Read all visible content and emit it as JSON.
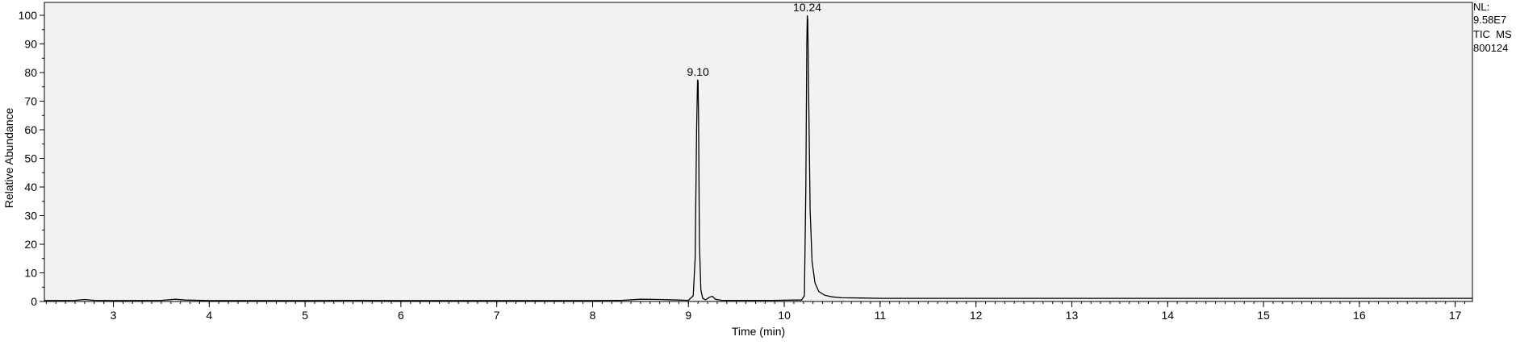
{
  "chart_data": {
    "type": "line",
    "xlabel": "Time (min)",
    "ylabel": "Relative Abundance",
    "xlim": [
      2.28,
      17.18
    ],
    "ylim": [
      0,
      100
    ],
    "x_ticks": [
      "3",
      "4",
      "5",
      "6",
      "7",
      "8",
      "9",
      "10",
      "11",
      "12",
      "13",
      "14",
      "15",
      "16",
      "17"
    ],
    "y_ticks": [
      "0",
      "10",
      "20",
      "30",
      "40",
      "50",
      "60",
      "70",
      "80",
      "90",
      "100"
    ],
    "grid": false,
    "legend": "none",
    "plot_background": "#f2f2f2",
    "line_color": "#000000",
    "peak_labels": [
      {
        "x": 9.1,
        "y": 77.5,
        "label": "9.10"
      },
      {
        "x": 10.24,
        "y": 100,
        "label": "10.24"
      }
    ],
    "info": {
      "nl_label": "NL:",
      "nl_value": "9.58E7",
      "scan": "TIC  MS",
      "sample": "800124"
    },
    "series": [
      {
        "x": [
          2.28,
          2.6,
          2.7,
          2.8,
          3.0,
          3.5,
          3.65,
          3.75,
          4.0,
          4.5,
          5.0,
          5.5,
          6.0,
          6.5,
          7.0,
          7.5,
          8.0,
          8.3,
          8.5,
          8.7,
          8.9,
          9.0,
          9.05,
          9.07,
          9.085,
          9.095,
          9.1,
          9.105,
          9.115,
          9.13,
          9.15,
          9.18,
          9.22,
          9.25,
          9.28,
          9.35,
          9.5,
          9.7,
          9.9,
          10.1,
          10.18,
          10.21,
          10.225,
          10.235,
          10.24,
          10.245,
          10.255,
          10.27,
          10.29,
          10.32,
          10.36,
          10.42,
          10.5,
          10.6,
          10.8,
          11.0,
          12.0,
          13.0,
          14.0,
          15.0,
          16.0,
          17.0,
          17.18
        ],
        "y": [
          0.3,
          0.4,
          0.7,
          0.4,
          0.3,
          0.4,
          0.8,
          0.5,
          0.3,
          0.3,
          0.3,
          0.4,
          0.3,
          0.3,
          0.3,
          0.3,
          0.3,
          0.4,
          0.8,
          0.7,
          0.5,
          0.4,
          2.0,
          15.0,
          60.0,
          77.5,
          77.0,
          65.0,
          20.0,
          4.0,
          1.0,
          0.6,
          1.5,
          1.8,
          0.8,
          0.4,
          0.4,
          0.4,
          0.4,
          0.5,
          0.5,
          2.0,
          40.0,
          90.0,
          100.0,
          98.0,
          70.0,
          32.0,
          14.0,
          6.5,
          3.5,
          2.2,
          1.6,
          1.3,
          1.2,
          1.1,
          1.1,
          1.1,
          1.1,
          1.1,
          1.1,
          1.1,
          1.1
        ]
      }
    ]
  }
}
